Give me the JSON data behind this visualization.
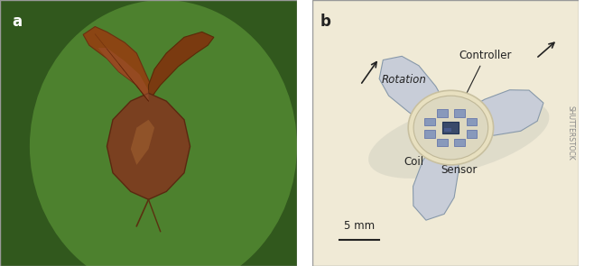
{
  "panel_a_label": "a",
  "panel_b_label": "b",
  "bg_color_a": "#2d5a1b",
  "bg_color_b": "#f0ead6",
  "border_color": "#cccccc",
  "rotation_label": "Rotation",
  "controller_label": "Controller",
  "coil_label": "Coil",
  "sensor_label": "Sensor",
  "scale_bar_label": "5 mm",
  "shutterstock_label": "SHUTTERSTOCK",
  "blade_color": "#c8cdd8",
  "blade_outline": "#8899aa",
  "hub_color": "#e8e4d0",
  "hub_outline": "#aaaaaa",
  "controller_chip_color": "#3a4a6a",
  "sensor_color": "#8899bb",
  "text_color": "#222222",
  "arrow_color": "#222222",
  "shadow_color": "#d0cfc0"
}
